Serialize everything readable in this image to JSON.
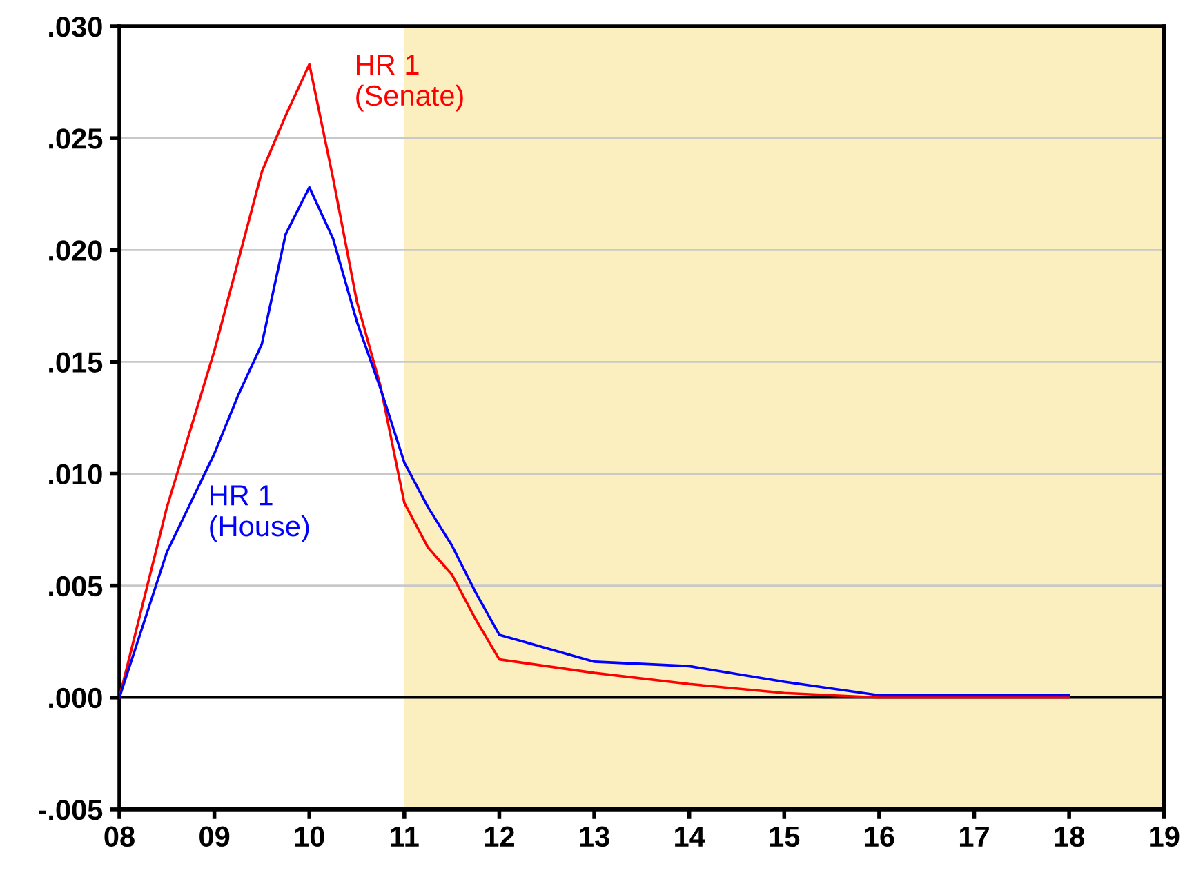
{
  "chart_data": {
    "type": "line",
    "x": [
      2008,
      2008.5,
      2009,
      2009.25,
      2009.5,
      2009.75,
      2010,
      2010.25,
      2010.5,
      2010.75,
      2011,
      2011.25,
      2011.5,
      2011.75,
      2012,
      2013,
      2014,
      2015,
      2016,
      2017,
      2018
    ],
    "series": [
      {
        "name": "HR 1\n(Senate)",
        "color": "#ff0000",
        "values": [
          0,
          0.0085,
          0.0155,
          0.0195,
          0.0235,
          0.026,
          0.0283,
          0.0232,
          0.0177,
          0.0139,
          0.0087,
          0.0067,
          0.0055,
          0.0035,
          0.0017,
          0.0011,
          0.0006,
          0.0002,
          0,
          0,
          0
        ]
      },
      {
        "name": "HR 1\n(House)",
        "color": "#0000ff",
        "values": [
          0,
          0.0065,
          0.0109,
          0.0135,
          0.0158,
          0.0207,
          0.0228,
          0.0205,
          0.0168,
          0.0138,
          0.0105,
          0.0085,
          0.0068,
          0.0047,
          0.0028,
          0.0016,
          0.0014,
          0.0007,
          0.0001,
          0.0001,
          0.0001
        ]
      }
    ],
    "xlim": [
      2008,
      2019
    ],
    "xticks": [
      {
        "value": 2008,
        "label": "08"
      },
      {
        "value": 2009,
        "label": "09"
      },
      {
        "value": 2010,
        "label": "10"
      },
      {
        "value": 2011,
        "label": "11"
      },
      {
        "value": 2012,
        "label": "12"
      },
      {
        "value": 2013,
        "label": "13"
      },
      {
        "value": 2014,
        "label": "14"
      },
      {
        "value": 2015,
        "label": "15"
      },
      {
        "value": 2016,
        "label": "16"
      },
      {
        "value": 2017,
        "label": "17"
      },
      {
        "value": 2018,
        "label": "18"
      },
      {
        "value": 2019,
        "label": "19"
      }
    ],
    "ylim": [
      -0.005,
      0.03
    ],
    "yticks": [
      {
        "value": -0.005,
        "label": "-.005"
      },
      {
        "value": 0,
        "label": ".000"
      },
      {
        "value": 0.005,
        "label": ".005"
      },
      {
        "value": 0.01,
        "label": ".010"
      },
      {
        "value": 0.015,
        "label": ".015"
      },
      {
        "value": 0.02,
        "label": ".020"
      },
      {
        "value": 0.025,
        "label": ".025"
      },
      {
        "value": 0.03,
        "label": ".030"
      }
    ],
    "grid": "y",
    "legend": false,
    "ref_lines": [
      {
        "axis": "y",
        "value": 0,
        "color": "#000000"
      }
    ],
    "bands": [
      {
        "axis": "x",
        "from": 2011,
        "to": 2019,
        "color": "#fbefc0"
      }
    ]
  }
}
